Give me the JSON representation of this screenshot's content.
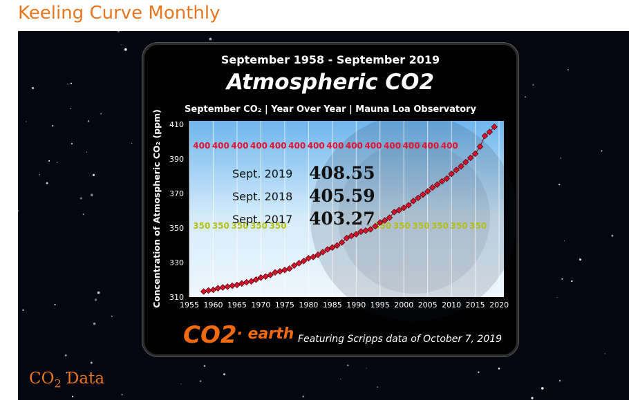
{
  "page": {
    "title": "Keeling Curve Monthly",
    "section_title_main": "CO",
    "section_title_sub": "2",
    "section_title_tail": " Data"
  },
  "card": {
    "dates": "September 1958 - September 2019",
    "main_title": "Atmospheric CO2",
    "subtitle": "September CO₂  | Year Over Year | Mauna Loa Observatory",
    "logo_a": "CO2",
    "logo_b": "· earth",
    "credit": "Featuring Scripps  data of October 7, 2019"
  },
  "colors": {
    "accent_orange": "#e8761f",
    "marker_red": "#d4142b",
    "label_400": "#e8102f",
    "label_350": "#b5bf16"
  },
  "chart_data": {
    "type": "line",
    "title": "Atmospheric CO2",
    "subtitle": "September CO₂  | Year Over Year | Mauna Loa Observatory",
    "ylabel": "Concentration of Atmospheric CO₂ (ppm)",
    "xlabel": "",
    "xlim": [
      1955,
      2021
    ],
    "ylim": [
      310,
      412
    ],
    "xticks": [
      1955,
      1960,
      1965,
      1970,
      1975,
      1980,
      1985,
      1990,
      1995,
      2000,
      2005,
      2010,
      2015,
      2020
    ],
    "yticks": [
      310,
      330,
      350,
      370,
      390,
      410
    ],
    "grid": true,
    "series": [
      {
        "x": [
          1958,
          1959,
          1960,
          1961,
          1962,
          1963,
          1964,
          1965,
          1966,
          1967,
          1968,
          1969,
          1970,
          1971,
          1972,
          1973,
          1974,
          1975,
          1976,
          1977,
          1978,
          1979,
          1980,
          1981,
          1982,
          1983,
          1984,
          1985,
          1986,
          1987,
          1988,
          1989,
          1990,
          1991,
          1992,
          1993,
          1994,
          1995,
          1996,
          1997,
          1998,
          1999,
          2000,
          2001,
          2002,
          2003,
          2004,
          2005,
          2006,
          2007,
          2008,
          2009,
          2010,
          2011,
          2012,
          2013,
          2014,
          2015,
          2016,
          2017,
          2018,
          2019
        ],
        "y": [
          313.2,
          313.8,
          314.2,
          315.1,
          315.6,
          316.0,
          316.6,
          317.0,
          317.9,
          318.6,
          319.1,
          320.1,
          321.3,
          321.9,
          322.8,
          324.3,
          324.9,
          325.7,
          326.5,
          328.3,
          329.6,
          330.9,
          332.5,
          333.2,
          334.5,
          336.0,
          337.6,
          338.7,
          339.9,
          341.6,
          344.1,
          345.4,
          346.4,
          347.9,
          348.5,
          349.2,
          351.0,
          353.1,
          354.4,
          356.0,
          359.2,
          360.3,
          361.7,
          363.2,
          365.6,
          367.4,
          369.3,
          371.2,
          373.4,
          375.1,
          377.0,
          378.6,
          381.3,
          383.6,
          385.7,
          388.1,
          390.6,
          393.0,
          397.1,
          403.27,
          405.59,
          408.55
        ]
      }
    ],
    "annotations": [
      {
        "label": "Sept. 2019",
        "value": "408.55"
      },
      {
        "label": "Sept. 2018",
        "value": "405.59"
      },
      {
        "label": "Sept. 2017",
        "value": "403.27"
      }
    ],
    "reference_lines": [
      {
        "value": 400,
        "label": "400"
      },
      {
        "value": 350,
        "label": "350"
      }
    ]
  }
}
